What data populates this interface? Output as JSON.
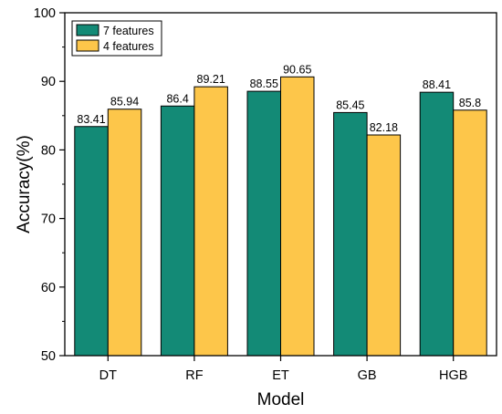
{
  "chart_data": {
    "type": "bar",
    "title": "",
    "xlabel": "Model",
    "ylabel": "Accuracy(%)",
    "ylim": [
      50,
      100
    ],
    "yticks": [
      50,
      60,
      70,
      80,
      90,
      100
    ],
    "categories": [
      "DT",
      "RF",
      "ET",
      "GB",
      "HGB"
    ],
    "series": [
      {
        "name": "7 features",
        "color": "#138A76",
        "values": [
          83.41,
          86.4,
          88.55,
          85.45,
          88.41
        ],
        "labels": [
          "83.41",
          "86.4",
          "88.55",
          "85.45",
          "88.41"
        ]
      },
      {
        "name": "4 features",
        "color": "#FDC64A",
        "values": [
          85.94,
          89.21,
          90.65,
          82.18,
          85.8
        ],
        "labels": [
          "85.94",
          "89.21",
          "90.65",
          "82.18",
          "85.8"
        ]
      }
    ],
    "legend_position": "top-left",
    "grid": false
  }
}
